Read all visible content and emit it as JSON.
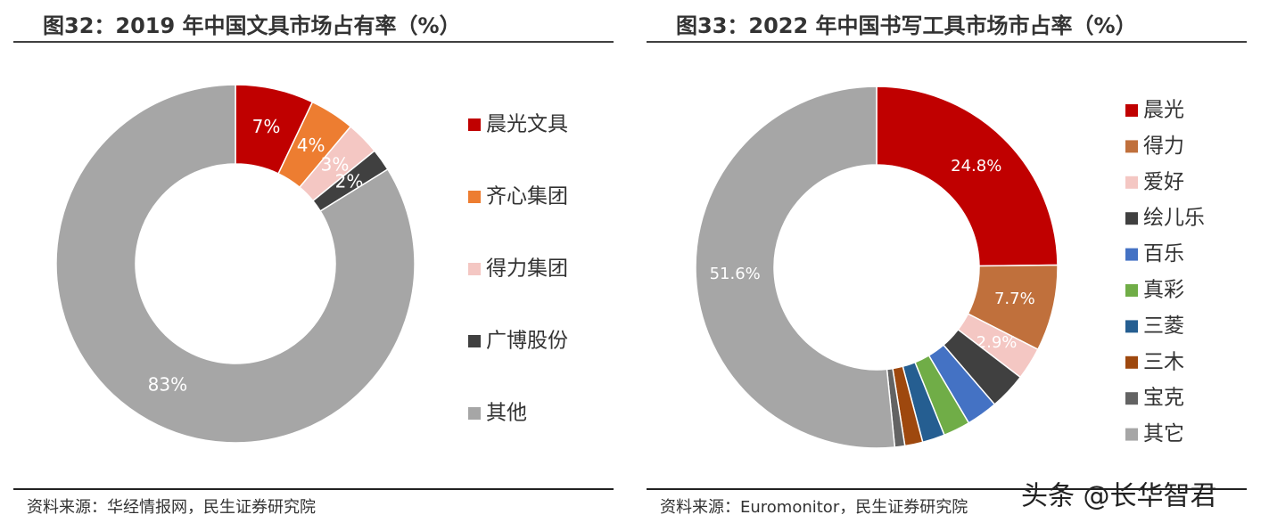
{
  "chart_data": [
    {
      "type": "donut",
      "title": "图32：2019 年中国文具市场占有率（%）",
      "categories": [
        "晨光文具",
        "齐心集团",
        "得力集团",
        "广博股份",
        "其他"
      ],
      "values": [
        7,
        4,
        3,
        2,
        83
      ],
      "value_labels": [
        "7%",
        "4%",
        "3%",
        "2%",
        "83%"
      ],
      "colors": [
        "#c00000",
        "#ed7d31",
        "#f4c7c3",
        "#404040",
        "#a6a6a6"
      ],
      "legend": "right",
      "source": "资料来源：华经情报网，民生证券研究院"
    },
    {
      "type": "donut",
      "title": "图33：2022 年中国书写工具市场市占率（%）",
      "categories": [
        "晨光",
        "得力",
        "爱好",
        "绘儿乐",
        "百乐",
        "真彩",
        "三菱",
        "三木",
        "宝克",
        "其它"
      ],
      "values": [
        24.8,
        7.7,
        2.9,
        3.3,
        2.8,
        2.4,
        2.0,
        1.6,
        0.9,
        51.6
      ],
      "value_labels": [
        "24.8%",
        "7.7%",
        "2.9%",
        null,
        null,
        null,
        null,
        null,
        null,
        "51.6%"
      ],
      "colors": [
        "#c00000",
        "#c0703c",
        "#f4c7c3",
        "#404040",
        "#4472c4",
        "#70ad47",
        "#255e91",
        "#9e480e",
        "#636363",
        "#a6a6a6"
      ],
      "legend": "right",
      "source": "资料来源：Euromonitor，民生证券研究院"
    }
  ],
  "watermark": "头条 @长华智君"
}
